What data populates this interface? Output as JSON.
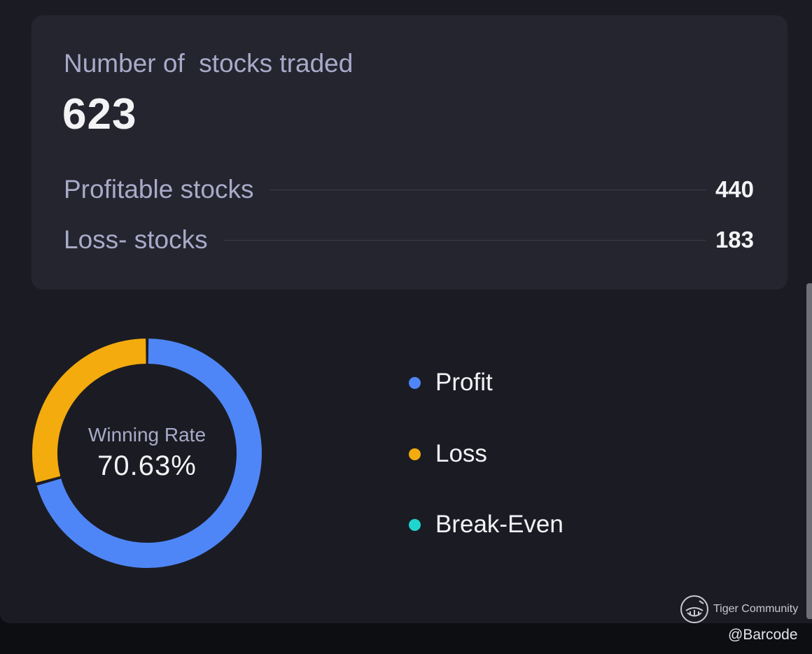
{
  "summary": {
    "title": "Number of  stocks traded",
    "total": "623",
    "rows": [
      {
        "label": "Profitable stocks",
        "value": "440"
      },
      {
        "label": "Loss- stocks",
        "value": "183"
      }
    ]
  },
  "winning_rate": {
    "label": "Winning Rate",
    "value": "70.63%"
  },
  "chart_data": {
    "type": "pie",
    "categories": [
      "Profit",
      "Loss",
      "Break-Even"
    ],
    "values": [
      440,
      183,
      0
    ],
    "colors": [
      "#4f86f7",
      "#f4ab0e",
      "#1fd6cf"
    ],
    "center_label": "Winning Rate",
    "center_value": "70.63%",
    "donut": true,
    "legend_position": "right"
  },
  "legend": [
    {
      "label": "Profit",
      "color": "#4f86f7"
    },
    {
      "label": "Loss",
      "color": "#f4ab0e"
    },
    {
      "label": "Break-Even",
      "color": "#1fd6cf"
    }
  ],
  "branding": {
    "logo_icon": "tiger-logo-icon",
    "name": "Tiger Community",
    "handle": "@Barcode"
  }
}
